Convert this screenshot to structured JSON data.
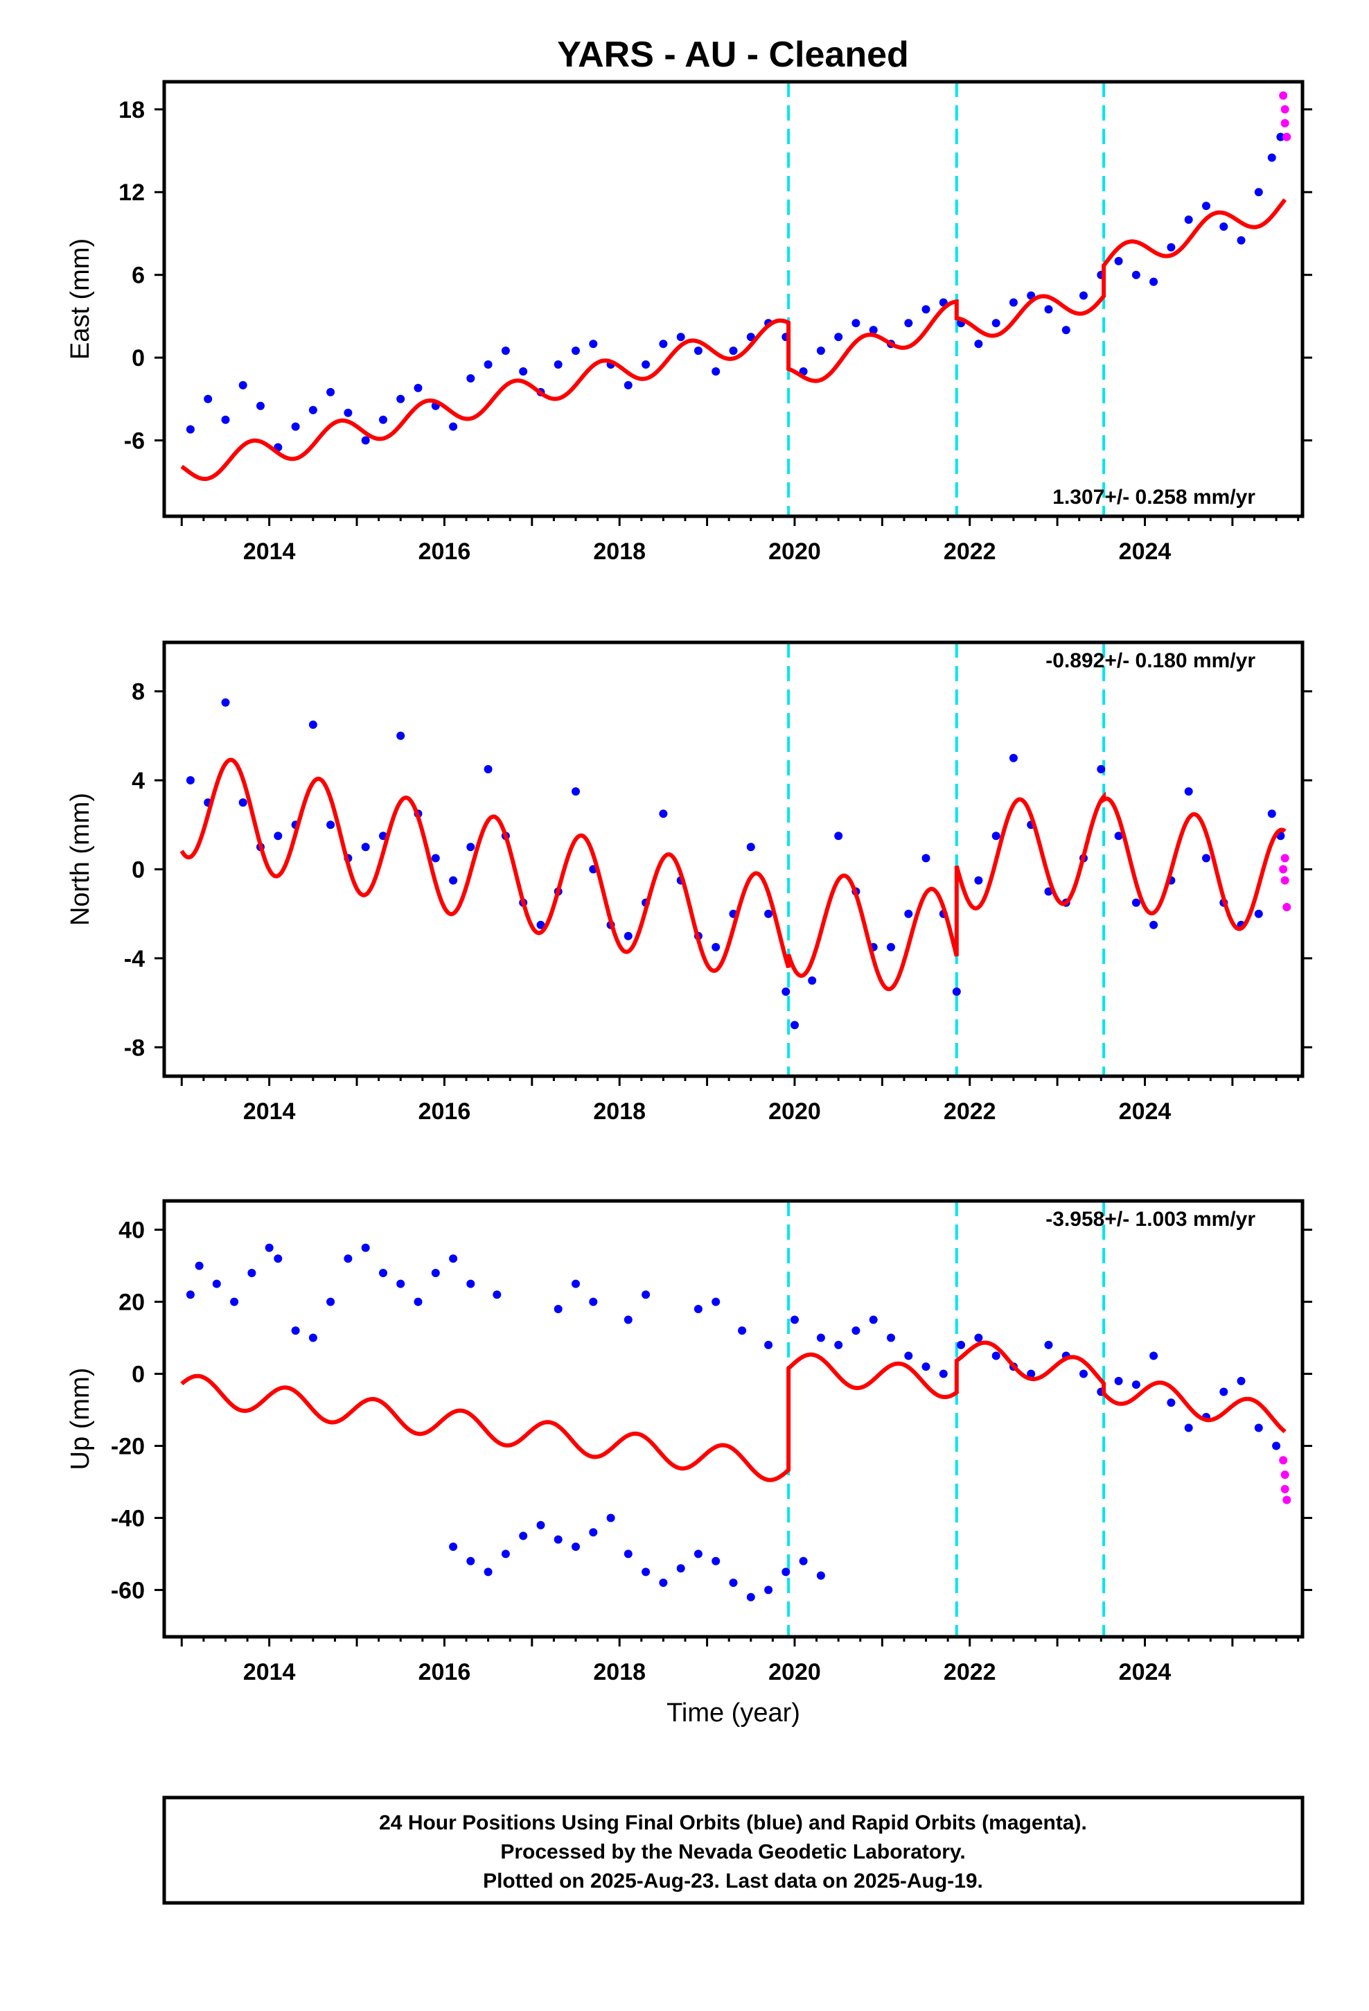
{
  "title": "YARS  - AU - Cleaned",
  "footer": {
    "line1": "24 Hour Positions Using Final Orbits (blue) and Rapid Orbits (magenta).",
    "line2": "Processed by the Nevada Geodetic Laboratory.",
    "line3": "Plotted on 2025-Aug-23. Last data on 2025-Aug-19."
  },
  "colors": {
    "final": "#0000ff",
    "rapid": "#ff00ff",
    "model": "#ff0000",
    "steps": "#00e5ee"
  },
  "chart_data": [
    {
      "type": "scatter",
      "panel": "east",
      "ylabel": "East (mm)",
      "xlabel": "",
      "rate": "1.307+/- 0.258 mm/yr",
      "xlim": [
        2012.8,
        2025.8
      ],
      "ylim": [
        -11.5,
        20
      ],
      "yticks": [
        -6,
        0,
        6,
        12,
        18
      ],
      "xticks": [
        2014,
        2016,
        2018,
        2020,
        2022,
        2024
      ],
      "steps": [
        2019.93,
        2021.85,
        2023.53
      ],
      "trend": {
        "segments": [
          {
            "from": 2013.0,
            "to": 2019.93,
            "offset": -8.2,
            "slope": 1.45
          },
          {
            "from": 2019.93,
            "to": 2021.85,
            "offset": -1.5,
            "slope": 2.4
          },
          {
            "from": 2021.85,
            "to": 2023.53,
            "offset": 1.9,
            "slope": 1.6
          },
          {
            "from": 2023.53,
            "to": 2025.6,
            "offset": 6.8,
            "slope": 2.1
          }
        ],
        "annual_amp": 1.0,
        "annual_phase": 0.55
      },
      "series": [
        {
          "color": "final",
          "points": [
            [
              2013.1,
              -5.2
            ],
            [
              2013.3,
              -3.0
            ],
            [
              2013.5,
              -4.5
            ],
            [
              2013.7,
              -2.0
            ],
            [
              2013.9,
              -3.5
            ],
            [
              2014.1,
              -6.5
            ],
            [
              2014.3,
              -5.0
            ],
            [
              2014.5,
              -3.8
            ],
            [
              2014.7,
              -2.5
            ],
            [
              2014.9,
              -4.0
            ],
            [
              2015.1,
              -6.0
            ],
            [
              2015.3,
              -4.5
            ],
            [
              2015.5,
              -3.0
            ],
            [
              2015.7,
              -2.2
            ],
            [
              2015.9,
              -3.5
            ],
            [
              2016.1,
              -5.0
            ],
            [
              2016.3,
              -1.5
            ],
            [
              2016.5,
              -0.5
            ],
            [
              2016.7,
              0.5
            ],
            [
              2016.9,
              -1.0
            ],
            [
              2017.1,
              -2.5
            ],
            [
              2017.3,
              -0.5
            ],
            [
              2017.5,
              0.5
            ],
            [
              2017.7,
              1.0
            ],
            [
              2017.9,
              -0.5
            ],
            [
              2018.1,
              -2.0
            ],
            [
              2018.3,
              -0.5
            ],
            [
              2018.5,
              1.0
            ],
            [
              2018.7,
              1.5
            ],
            [
              2018.9,
              0.5
            ],
            [
              2019.1,
              -1.0
            ],
            [
              2019.3,
              0.5
            ],
            [
              2019.5,
              1.5
            ],
            [
              2019.7,
              2.5
            ],
            [
              2019.9,
              1.5
            ],
            [
              2020.1,
              -1.0
            ],
            [
              2020.3,
              0.5
            ],
            [
              2020.5,
              1.5
            ],
            [
              2020.7,
              2.5
            ],
            [
              2020.9,
              2.0
            ],
            [
              2021.1,
              1.0
            ],
            [
              2021.3,
              2.5
            ],
            [
              2021.5,
              3.5
            ],
            [
              2021.7,
              4.0
            ],
            [
              2021.9,
              2.5
            ],
            [
              2022.1,
              1.0
            ],
            [
              2022.3,
              2.5
            ],
            [
              2022.5,
              4.0
            ],
            [
              2022.7,
              4.5
            ],
            [
              2022.9,
              3.5
            ],
            [
              2023.1,
              2.0
            ],
            [
              2023.3,
              4.5
            ],
            [
              2023.5,
              6.0
            ],
            [
              2023.7,
              7.0
            ],
            [
              2023.9,
              6.0
            ],
            [
              2024.1,
              5.5
            ],
            [
              2024.3,
              8.0
            ],
            [
              2024.5,
              10.0
            ],
            [
              2024.7,
              11.0
            ],
            [
              2024.9,
              9.5
            ],
            [
              2025.1,
              8.5
            ],
            [
              2025.3,
              12.0
            ],
            [
              2025.45,
              14.5
            ],
            [
              2025.55,
              16.0
            ]
          ]
        },
        {
          "color": "rapid",
          "points": [
            [
              2025.58,
              19.0
            ],
            [
              2025.6,
              18.0
            ],
            [
              2025.6,
              17.0
            ],
            [
              2025.62,
              16.0
            ]
          ]
        }
      ]
    },
    {
      "type": "scatter",
      "panel": "north",
      "ylabel": "North (mm)",
      "xlabel": "",
      "rate": "-0.892+/- 0.180 mm/yr",
      "xlim": [
        2012.8,
        2025.8
      ],
      "ylim": [
        -9.3,
        10.2
      ],
      "yticks": [
        -8,
        -4,
        0,
        4,
        8
      ],
      "xticks": [
        2014,
        2016,
        2018,
        2020,
        2022,
        2024
      ],
      "steps": [
        2019.93,
        2021.85,
        2023.53
      ],
      "trend": {
        "segments": [
          {
            "from": 2013.0,
            "to": 2019.93,
            "offset": 3.0,
            "slope": -0.85
          },
          {
            "from": 2019.93,
            "to": 2021.85,
            "offset": -2.3,
            "slope": -0.6
          },
          {
            "from": 2021.85,
            "to": 2023.53,
            "offset": 0.6,
            "slope": 0.2
          },
          {
            "from": 2023.53,
            "to": 2025.6,
            "offset": 0.8,
            "slope": -0.7
          }
        ],
        "annual_amp": 2.4,
        "annual_phase": 0.32
      },
      "series": [
        {
          "color": "final",
          "points": [
            [
              2013.1,
              4.0
            ],
            [
              2013.3,
              3.0
            ],
            [
              2013.5,
              7.5
            ],
            [
              2013.7,
              3.0
            ],
            [
              2013.9,
              1.0
            ],
            [
              2014.1,
              1.5
            ],
            [
              2014.3,
              2.0
            ],
            [
              2014.5,
              6.5
            ],
            [
              2014.7,
              2.0
            ],
            [
              2014.9,
              0.5
            ],
            [
              2015.1,
              1.0
            ],
            [
              2015.3,
              1.5
            ],
            [
              2015.5,
              6.0
            ],
            [
              2015.7,
              2.5
            ],
            [
              2015.9,
              0.5
            ],
            [
              2016.1,
              -0.5
            ],
            [
              2016.3,
              1.0
            ],
            [
              2016.5,
              4.5
            ],
            [
              2016.7,
              1.5
            ],
            [
              2016.9,
              -1.5
            ],
            [
              2017.1,
              -2.5
            ],
            [
              2017.3,
              -1.0
            ],
            [
              2017.5,
              3.5
            ],
            [
              2017.7,
              0.0
            ],
            [
              2017.9,
              -2.5
            ],
            [
              2018.1,
              -3.0
            ],
            [
              2018.3,
              -1.5
            ],
            [
              2018.5,
              2.5
            ],
            [
              2018.7,
              -0.5
            ],
            [
              2018.9,
              -3.0
            ],
            [
              2019.1,
              -3.5
            ],
            [
              2019.3,
              -2.0
            ],
            [
              2019.5,
              1.0
            ],
            [
              2019.7,
              -2.0
            ],
            [
              2019.9,
              -5.5
            ],
            [
              2020.0,
              -7.0
            ],
            [
              2020.2,
              -5.0
            ],
            [
              2020.5,
              1.5
            ],
            [
              2020.7,
              -1.0
            ],
            [
              2020.9,
              -3.5
            ],
            [
              2021.1,
              -3.5
            ],
            [
              2021.3,
              -2.0
            ],
            [
              2021.5,
              0.5
            ],
            [
              2021.7,
              -2.0
            ],
            [
              2021.85,
              -5.5
            ],
            [
              2022.1,
              -0.5
            ],
            [
              2022.3,
              1.5
            ],
            [
              2022.5,
              5.0
            ],
            [
              2022.7,
              2.0
            ],
            [
              2022.9,
              -1.0
            ],
            [
              2023.1,
              -1.5
            ],
            [
              2023.3,
              0.5
            ],
            [
              2023.5,
              4.5
            ],
            [
              2023.7,
              1.5
            ],
            [
              2023.9,
              -1.5
            ],
            [
              2024.1,
              -2.5
            ],
            [
              2024.3,
              -0.5
            ],
            [
              2024.5,
              3.5
            ],
            [
              2024.7,
              0.5
            ],
            [
              2024.9,
              -1.5
            ],
            [
              2025.1,
              -2.5
            ],
            [
              2025.3,
              -2.0
            ],
            [
              2025.45,
              2.5
            ],
            [
              2025.55,
              1.5
            ]
          ]
        },
        {
          "color": "rapid",
          "points": [
            [
              2025.58,
              0.0
            ],
            [
              2025.6,
              -0.5
            ],
            [
              2025.6,
              0.5
            ],
            [
              2025.62,
              -1.7
            ]
          ]
        }
      ]
    },
    {
      "type": "scatter",
      "panel": "up",
      "ylabel": "Up (mm)",
      "xlabel": "Time (year)",
      "rate": "-3.958+/- 1.003 mm/yr",
      "xlim": [
        2012.8,
        2025.8
      ],
      "ylim": [
        -73,
        48
      ],
      "yticks": [
        -60,
        -40,
        -20,
        0,
        20,
        40
      ],
      "xticks": [
        2014,
        2016,
        2018,
        2020,
        2022,
        2024
      ],
      "steps": [
        2019.93,
        2021.85,
        2023.53
      ],
      "trend": {
        "segments": [
          {
            "from": 2013.0,
            "to": 2019.93,
            "offset": -4.0,
            "slope": -3.2
          },
          {
            "from": 2019.93,
            "to": 2021.85,
            "offset": 2.0,
            "slope": -2.5
          },
          {
            "from": 2021.85,
            "to": 2023.53,
            "offset": 6.0,
            "slope": -4.0
          },
          {
            "from": 2023.53,
            "to": 2025.6,
            "offset": -3.5,
            "slope": -4.5
          }
        ],
        "annual_amp": 4.0,
        "annual_phase": 0.95
      },
      "series": [
        {
          "color": "final",
          "points": [
            [
              2013.1,
              22.0
            ],
            [
              2013.2,
              30.0
            ],
            [
              2013.4,
              25.0
            ],
            [
              2013.6,
              20.0
            ],
            [
              2013.8,
              28.0
            ],
            [
              2014.0,
              35.0
            ],
            [
              2014.1,
              32.0
            ],
            [
              2014.3,
              12.0
            ],
            [
              2014.5,
              10.0
            ],
            [
              2014.7,
              20.0
            ],
            [
              2014.9,
              32.0
            ],
            [
              2015.1,
              35.0
            ],
            [
              2015.3,
              28.0
            ],
            [
              2015.5,
              25.0
            ],
            [
              2015.7,
              20.0
            ],
            [
              2015.9,
              28.0
            ],
            [
              2016.1,
              32.0
            ],
            [
              2016.3,
              25.0
            ],
            [
              2016.6,
              22.0
            ],
            [
              2016.1,
              -48.0
            ],
            [
              2016.3,
              -52.0
            ],
            [
              2016.5,
              -55.0
            ],
            [
              2016.7,
              -50.0
            ],
            [
              2016.9,
              -45.0
            ],
            [
              2017.1,
              -42.0
            ],
            [
              2017.3,
              -46.0
            ],
            [
              2017.5,
              -48.0
            ],
            [
              2017.7,
              -44.0
            ],
            [
              2017.9,
              -40.0
            ],
            [
              2018.1,
              -50.0
            ],
            [
              2018.3,
              -55.0
            ],
            [
              2018.5,
              -58.0
            ],
            [
              2018.7,
              -54.0
            ],
            [
              2018.9,
              -50.0
            ],
            [
              2019.1,
              -52.0
            ],
            [
              2019.3,
              -58.0
            ],
            [
              2019.5,
              -62.0
            ],
            [
              2019.7,
              -60.0
            ],
            [
              2019.9,
              -55.0
            ],
            [
              2020.1,
              -52.0
            ],
            [
              2020.3,
              -56.0
            ],
            [
              2017.3,
              18.0
            ],
            [
              2017.5,
              25.0
            ],
            [
              2017.7,
              20.0
            ],
            [
              2018.1,
              15.0
            ],
            [
              2018.3,
              22.0
            ],
            [
              2018.9,
              18.0
            ],
            [
              2019.1,
              20.0
            ],
            [
              2019.4,
              12.0
            ],
            [
              2019.7,
              8.0
            ],
            [
              2020.0,
              15.0
            ],
            [
              2020.3,
              10.0
            ],
            [
              2020.5,
              8.0
            ],
            [
              2020.7,
              12.0
            ],
            [
              2020.9,
              15.0
            ],
            [
              2021.1,
              10.0
            ],
            [
              2021.3,
              5.0
            ],
            [
              2021.5,
              2.0
            ],
            [
              2021.7,
              0.0
            ],
            [
              2021.9,
              8.0
            ],
            [
              2022.1,
              10.0
            ],
            [
              2022.3,
              5.0
            ],
            [
              2022.5,
              2.0
            ],
            [
              2022.7,
              0.0
            ],
            [
              2022.9,
              8.0
            ],
            [
              2023.1,
              5.0
            ],
            [
              2023.3,
              0.0
            ],
            [
              2023.5,
              -5.0
            ],
            [
              2023.7,
              -2.0
            ],
            [
              2023.9,
              -3.0
            ],
            [
              2024.1,
              5.0
            ],
            [
              2024.3,
              -8.0
            ],
            [
              2024.5,
              -15.0
            ],
            [
              2024.7,
              -12.0
            ],
            [
              2024.9,
              -5.0
            ],
            [
              2025.1,
              -2.0
            ],
            [
              2025.3,
              -15.0
            ],
            [
              2025.5,
              -20.0
            ]
          ]
        },
        {
          "color": "rapid",
          "points": [
            [
              2025.58,
              -24.0
            ],
            [
              2025.6,
              -28.0
            ],
            [
              2025.6,
              -32.0
            ],
            [
              2025.62,
              -35.0
            ]
          ]
        }
      ]
    }
  ]
}
